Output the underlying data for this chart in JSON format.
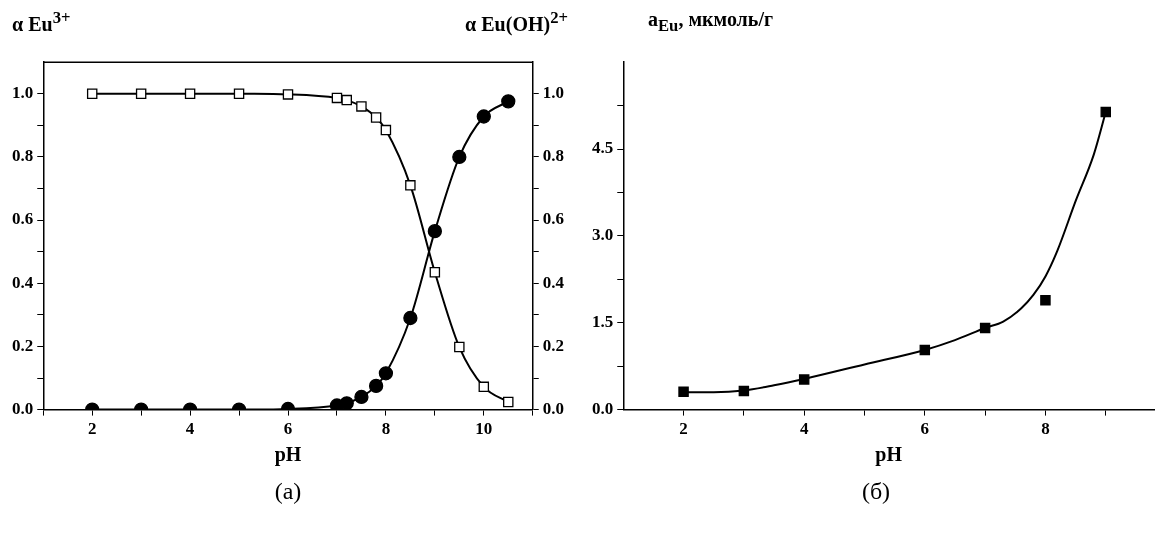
{
  "chart_data": [
    {
      "type": "line",
      "xlabel": "pH",
      "ylabel": "α Eu$^{3+}$",
      "y2label": "α Eu(OH)$^{2+}$",
      "annotations": [
        "(a)"
      ],
      "x": [
        2,
        3,
        4,
        5,
        6,
        7,
        7.2,
        7.5,
        7.8,
        8,
        8.5,
        9,
        9.5,
        10,
        10.5
      ],
      "xlim": [
        1,
        11
      ],
      "xticks": [
        {
          "value": 1,
          "label": null
        },
        2,
        {
          "value": 3,
          "label": null
        },
        4,
        {
          "value": 5,
          "label": null
        },
        6,
        {
          "value": 7,
          "label": null
        },
        8,
        {
          "value": 9,
          "label": null
        },
        10,
        {
          "value": 11,
          "label": null
        }
      ],
      "ylim": [
        0,
        1.1
      ],
      "yticks": [
        {
          "value": 0,
          "label": "0.0"
        },
        {
          "value": 0.1,
          "label": null
        },
        0.2,
        {
          "value": 0.3,
          "label": null
        },
        0.4,
        {
          "value": 0.5,
          "label": null
        },
        0.6,
        {
          "value": 0.7,
          "label": null
        },
        0.8,
        {
          "value": 0.9,
          "label": null
        },
        {
          "value": 1,
          "label": "1.0"
        }
      ],
      "y2lim": [
        0,
        1.1
      ],
      "y2ticks": [
        {
          "value": 0,
          "label": "0.0"
        },
        {
          "value": 0.1,
          "label": null
        },
        0.2,
        {
          "value": 0.3,
          "label": null
        },
        0.4,
        {
          "value": 0.5,
          "label": null
        },
        0.6,
        {
          "value": 0.7,
          "label": null
        },
        0.8,
        {
          "value": 0.9,
          "label": null
        },
        {
          "value": 1,
          "label": "1.0"
        }
      ],
      "series": [
        {
          "color": "#000000",
          "marker": "square",
          "values": [
            1,
            1,
            1,
            1,
            0.998,
            0.987,
            0.98,
            0.96,
            0.925,
            0.885,
            0.71,
            0.435,
            0.198,
            0.072,
            0.024
          ]
        },
        {
          "color": "#000000",
          "marker": "circle",
          "axis": "y2",
          "values": [
            0,
            0,
            0,
            0,
            0.002,
            0.013,
            0.02,
            0.04,
            0.075,
            0.115,
            0.29,
            0.565,
            0.8,
            0.928,
            0.976
          ]
        }
      ]
    },
    {
      "type": "scatter",
      "xlabel": "pH",
      "ylabel": "a$_{Eu}$, мкмоль/г",
      "annotations": [
        "(б)"
      ],
      "x": [
        2,
        3,
        4,
        6,
        7,
        8,
        9
      ],
      "xlim": [
        1,
        9.8
      ],
      "xticks": [
        2,
        {
          "value": 3,
          "label": null
        },
        4,
        {
          "value": 5,
          "label": null
        },
        6,
        {
          "value": 7,
          "label": null
        },
        8,
        {
          "value": 9,
          "label": null
        }
      ],
      "ylim": [
        0,
        6
      ],
      "yticks": [
        {
          "value": 0,
          "label": "0.0"
        },
        {
          "value": 0.75,
          "label": null
        },
        1.5,
        {
          "value": 2.25,
          "label": null
        },
        {
          "value": 3,
          "label": "3.0"
        },
        {
          "value": 3.75,
          "label": null
        },
        4.5,
        {
          "value": 5.25,
          "label": null
        }
      ],
      "series": [
        {
          "color": "#000000",
          "marker": "square",
          "values": [
            0.31,
            0.32,
            0.52,
            1.03,
            1.41,
            1.89,
            5.14
          ]
        },
        {
          "type": "line",
          "color": "#000000",
          "marker": "none",
          "x": [
            2,
            2.5,
            3,
            3.5,
            4,
            5,
            6,
            6.5,
            7,
            7.3,
            7.6,
            7.8,
            8,
            8.2,
            8.5,
            8.8,
            9
          ],
          "values": [
            0.3,
            0.3,
            0.33,
            0.42,
            0.53,
            0.78,
            1.03,
            1.2,
            1.41,
            1.52,
            1.75,
            1.98,
            2.3,
            2.75,
            3.6,
            4.4,
            5.14
          ]
        }
      ]
    }
  ]
}
